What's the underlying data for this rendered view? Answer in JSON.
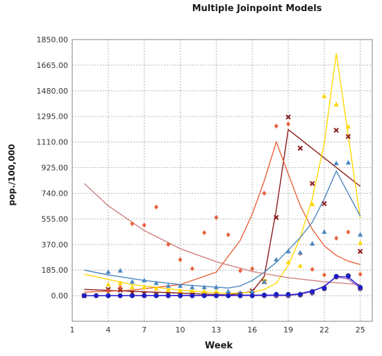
{
  "chart_data": {
    "type": "scatter",
    "title": "Multiple Joinpoint Models",
    "xlabel": "Week",
    "ylabel": "pop./100,000",
    "xlim": [
      1,
      26
    ],
    "ylim": [
      -185,
      1850
    ],
    "x_ticks": [
      "1",
      "4",
      "7",
      "10",
      "13",
      "16",
      "19",
      "22",
      "25"
    ],
    "y_ticks": [
      "0.00",
      "185.00",
      "370.00",
      "555.00",
      "740.00",
      "925.00",
      "1110.00",
      "1295.00",
      "1480.00",
      "1665.00",
      "1850.00"
    ],
    "grid": true,
    "legend": "none",
    "series": [
      {
        "color": "#8b1a1a",
        "marker": "x",
        "points": [
          [
            2,
            0
          ],
          [
            4,
            45
          ],
          [
            5,
            40
          ],
          [
            6,
            20
          ],
          [
            7,
            15
          ],
          [
            8,
            10
          ],
          [
            9,
            10
          ],
          [
            10,
            10
          ],
          [
            11,
            10
          ],
          [
            12,
            10
          ],
          [
            13,
            10
          ],
          [
            14,
            10
          ],
          [
            15,
            10
          ],
          [
            16,
            35
          ],
          [
            17,
            100
          ],
          [
            18,
            565
          ],
          [
            19,
            1290
          ],
          [
            20,
            1065
          ],
          [
            21,
            810
          ],
          [
            22,
            665
          ],
          [
            23,
            1195
          ],
          [
            24,
            1150
          ],
          [
            25,
            320
          ]
        ],
        "fit": [
          [
            2,
            45
          ],
          [
            14,
            5
          ],
          [
            16,
            30
          ],
          [
            17,
            140
          ],
          [
            18,
            620
          ],
          [
            19,
            1200
          ],
          [
            25,
            790
          ]
        ]
      },
      {
        "color": "#e8613a",
        "marker": "diamond",
        "points": [
          [
            4,
            30
          ],
          [
            5,
            60
          ],
          [
            6,
            520
          ],
          [
            7,
            510
          ],
          [
            8,
            640
          ],
          [
            9,
            370
          ],
          [
            10,
            260
          ],
          [
            11,
            195
          ],
          [
            12,
            455
          ],
          [
            13,
            565
          ],
          [
            14,
            440
          ],
          [
            15,
            180
          ],
          [
            16,
            195
          ],
          [
            17,
            740
          ],
          [
            18,
            1225
          ],
          [
            19,
            1240
          ],
          [
            20,
            305
          ],
          [
            21,
            190
          ],
          [
            22,
            150
          ],
          [
            23,
            415
          ],
          [
            24,
            460
          ],
          [
            25,
            155
          ]
        ],
        "fit": [
          [
            2,
            25
          ],
          [
            6,
            40
          ],
          [
            10,
            80
          ],
          [
            13,
            170
          ],
          [
            15,
            400
          ],
          [
            16,
            590
          ],
          [
            17,
            830
          ],
          [
            18,
            1110
          ],
          [
            19,
            880
          ],
          [
            20,
            650
          ],
          [
            21,
            480
          ],
          [
            22,
            360
          ],
          [
            23,
            290
          ],
          [
            24,
            250
          ],
          [
            25,
            225
          ]
        ]
      },
      {
        "color": "#ffd700",
        "marker": "triangle",
        "points": [
          [
            4,
            80
          ],
          [
            5,
            90
          ],
          [
            6,
            60
          ],
          [
            7,
            60
          ],
          [
            8,
            50
          ],
          [
            9,
            40
          ],
          [
            10,
            35
          ],
          [
            11,
            35
          ],
          [
            12,
            30
          ],
          [
            13,
            30
          ],
          [
            14,
            25
          ],
          [
            15,
            20
          ],
          [
            16,
            30
          ],
          [
            17,
            110
          ],
          [
            18,
            260
          ],
          [
            19,
            240
          ],
          [
            20,
            215
          ],
          [
            21,
            660
          ],
          [
            22,
            1440
          ],
          [
            23,
            1380
          ],
          [
            24,
            1220
          ],
          [
            25,
            380
          ]
        ],
        "fit": [
          [
            2,
            155
          ],
          [
            6,
            80
          ],
          [
            10,
            40
          ],
          [
            14,
            15
          ],
          [
            16,
            25
          ],
          [
            17,
            45
          ],
          [
            18,
            90
          ],
          [
            19,
            220
          ],
          [
            20,
            420
          ],
          [
            21,
            700
          ],
          [
            22,
            1100
          ],
          [
            23,
            1750
          ],
          [
            25,
            560
          ]
        ]
      },
      {
        "color": "#4a86c0",
        "marker": "triangle",
        "points": [
          [
            4,
            170
          ],
          [
            5,
            180
          ],
          [
            6,
            100
          ],
          [
            7,
            110
          ],
          [
            8,
            90
          ],
          [
            9,
            70
          ],
          [
            10,
            70
          ],
          [
            11,
            60
          ],
          [
            12,
            60
          ],
          [
            13,
            60
          ],
          [
            14,
            30
          ],
          [
            15,
            20
          ],
          [
            16,
            30
          ],
          [
            17,
            100
          ],
          [
            18,
            260
          ],
          [
            19,
            320
          ],
          [
            20,
            310
          ],
          [
            21,
            375
          ],
          [
            22,
            460
          ],
          [
            23,
            955
          ],
          [
            24,
            960
          ],
          [
            25,
            440
          ]
        ],
        "fit": [
          [
            2,
            185
          ],
          [
            4,
            150
          ],
          [
            7,
            110
          ],
          [
            10,
            80
          ],
          [
            14,
            55
          ],
          [
            15,
            70
          ],
          [
            16,
            110
          ],
          [
            17,
            170
          ],
          [
            18,
            240
          ],
          [
            19,
            330
          ],
          [
            20,
            420
          ],
          [
            21,
            530
          ],
          [
            22,
            700
          ],
          [
            23,
            900
          ],
          [
            25,
            575
          ]
        ]
      },
      {
        "color": "#d08080",
        "marker": "none",
        "points": [],
        "fit": [
          [
            2,
            810
          ],
          [
            4,
            650
          ],
          [
            7,
            470
          ],
          [
            10,
            340
          ],
          [
            13,
            245
          ],
          [
            16,
            175
          ],
          [
            19,
            130
          ],
          [
            22,
            100
          ],
          [
            25,
            80
          ]
        ]
      },
      {
        "color": "#9b55b5",
        "marker": "circle",
        "points": [
          [
            2,
            0
          ],
          [
            3,
            0
          ],
          [
            4,
            0
          ],
          [
            5,
            0
          ],
          [
            6,
            0
          ],
          [
            7,
            0
          ],
          [
            8,
            0
          ],
          [
            9,
            0
          ],
          [
            10,
            0
          ],
          [
            11,
            0
          ],
          [
            12,
            0
          ],
          [
            13,
            0
          ],
          [
            14,
            0
          ],
          [
            15,
            0
          ],
          [
            16,
            0
          ],
          [
            17,
            0
          ],
          [
            18,
            0
          ],
          [
            19,
            0
          ],
          [
            20,
            5
          ],
          [
            21,
            20
          ],
          [
            22,
            50
          ],
          [
            23,
            135
          ],
          [
            24,
            145
          ],
          [
            25,
            50
          ]
        ],
        "fit": [
          [
            2,
            0
          ],
          [
            19,
            0
          ],
          [
            20,
            10
          ],
          [
            21,
            30
          ],
          [
            22,
            70
          ],
          [
            23,
            135
          ],
          [
            24,
            120
          ],
          [
            25,
            55
          ]
        ]
      },
      {
        "color": "#1a1adc",
        "marker": "circle",
        "points": [
          [
            2,
            0
          ],
          [
            3,
            0
          ],
          [
            4,
            0
          ],
          [
            5,
            0
          ],
          [
            6,
            0
          ],
          [
            7,
            0
          ],
          [
            8,
            0
          ],
          [
            9,
            0
          ],
          [
            10,
            0
          ],
          [
            11,
            0
          ],
          [
            12,
            0
          ],
          [
            13,
            0
          ],
          [
            14,
            0
          ],
          [
            15,
            0
          ],
          [
            16,
            0
          ],
          [
            17,
            5
          ],
          [
            18,
            10
          ],
          [
            19,
            10
          ],
          [
            20,
            10
          ],
          [
            21,
            30
          ],
          [
            22,
            55
          ],
          [
            23,
            140
          ],
          [
            24,
            140
          ],
          [
            25,
            60
          ]
        ],
        "fit": [
          [
            2,
            0
          ],
          [
            19,
            5
          ],
          [
            20,
            15
          ],
          [
            21,
            35
          ],
          [
            22,
            65
          ],
          [
            23,
            140
          ],
          [
            24,
            135
          ],
          [
            25,
            65
          ]
        ]
      }
    ]
  }
}
